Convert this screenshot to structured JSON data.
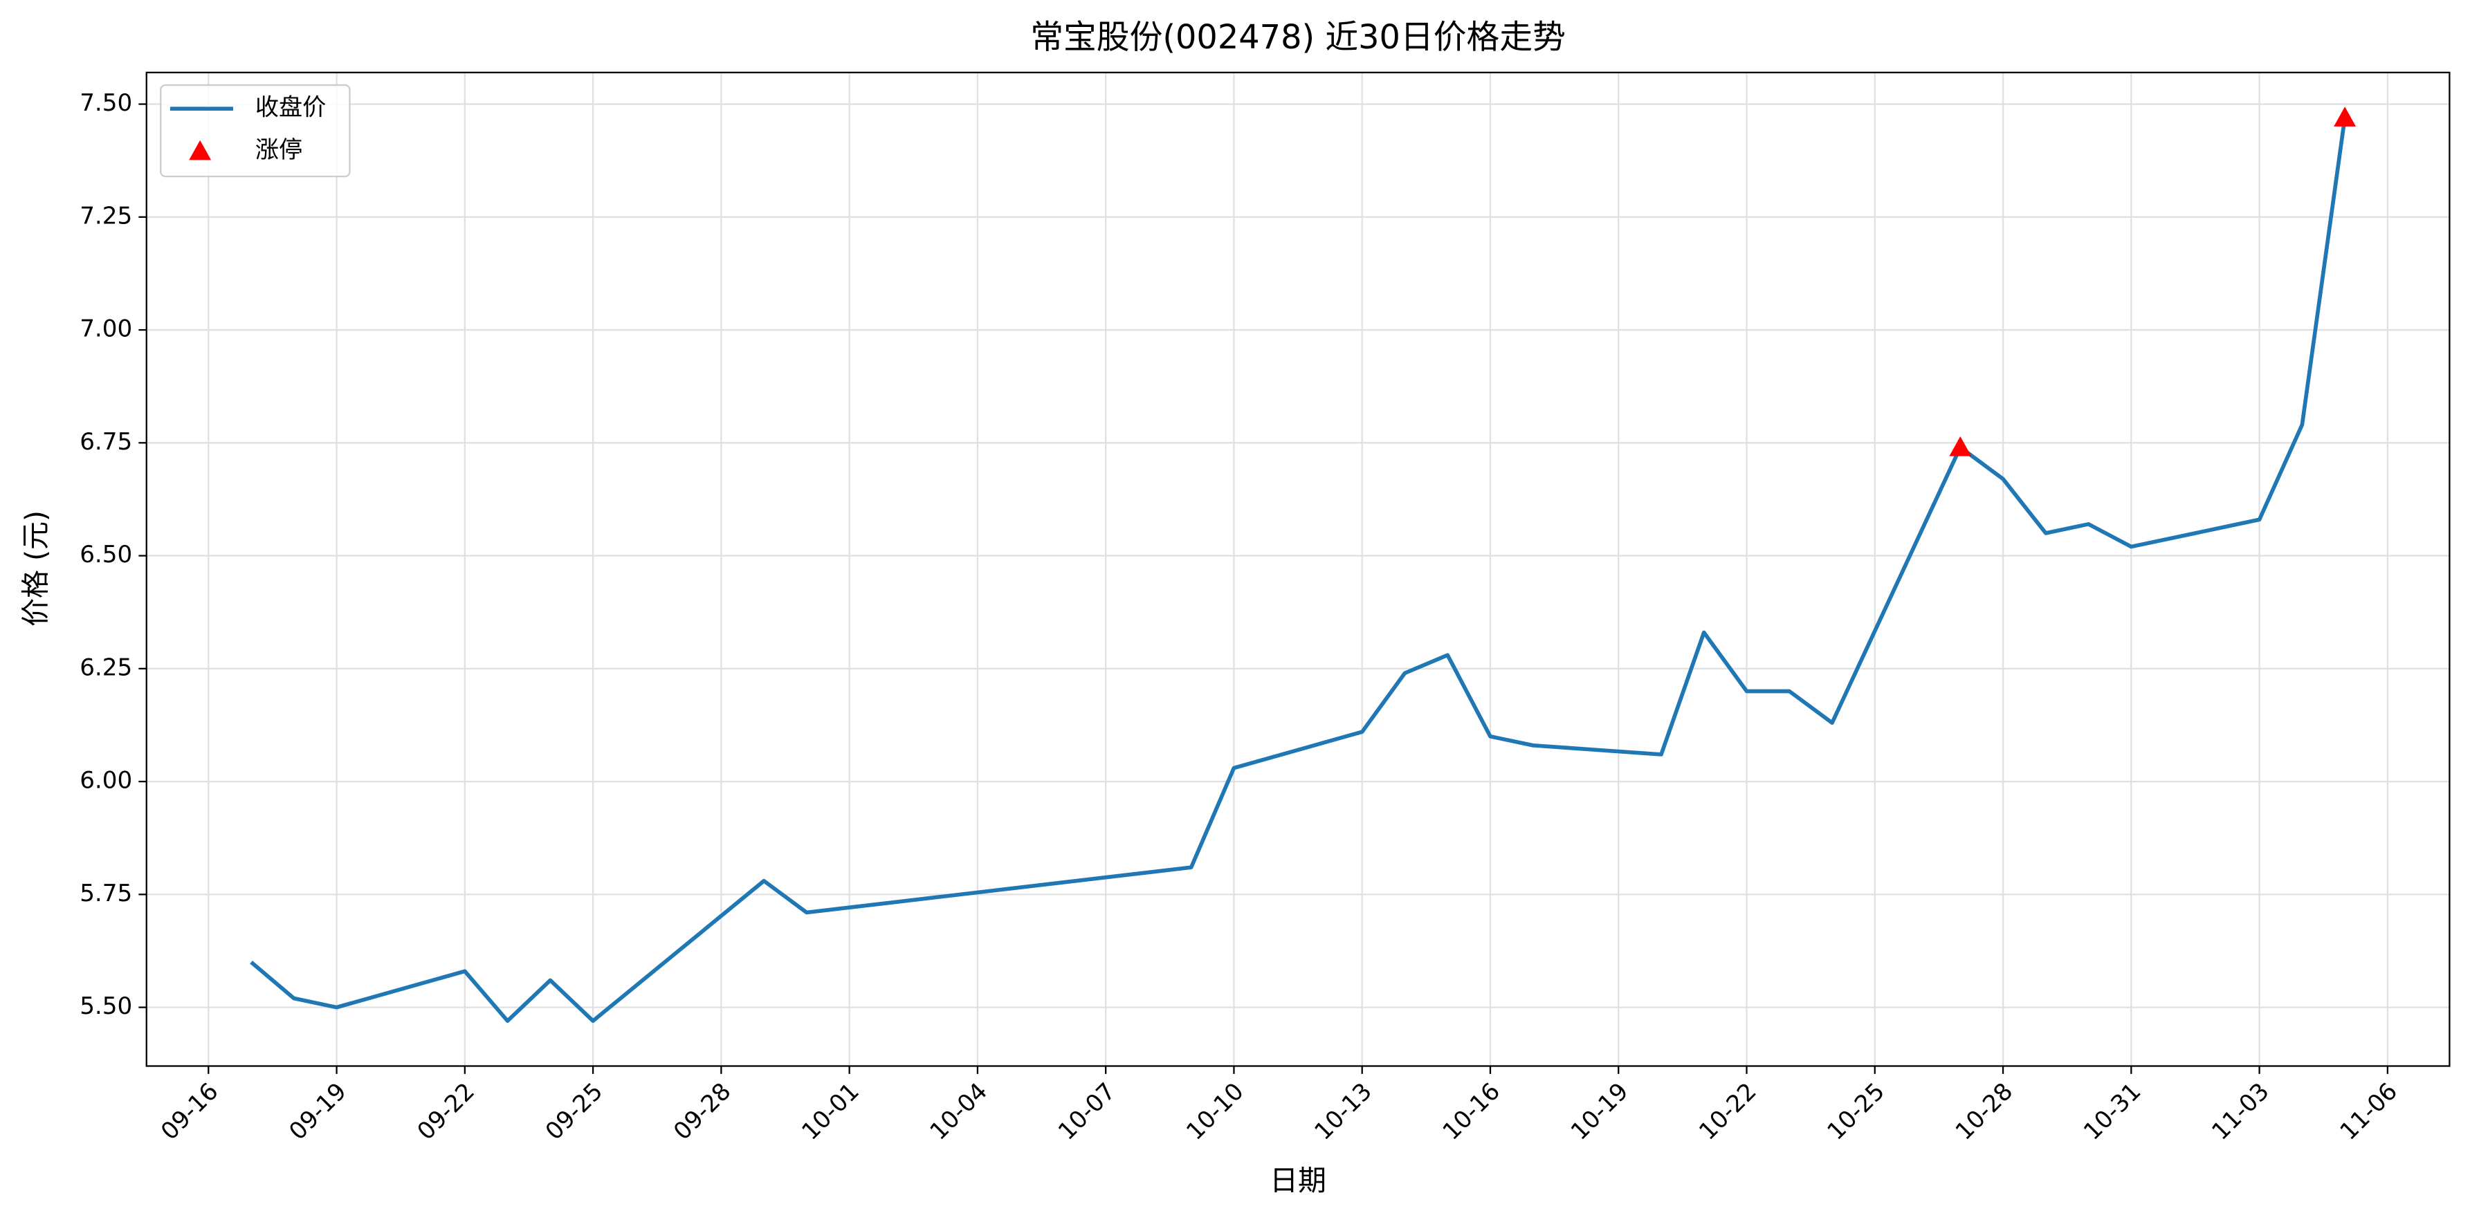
{
  "chart_data": {
    "type": "line",
    "title": "常宝股份(002478) 近30日价格走势",
    "xlabel": "日期",
    "ylabel": "价格 (元)",
    "series": [
      {
        "name": "收盘价",
        "color": "#1f77b4",
        "type": "line",
        "x": [
          "09-17",
          "09-18",
          "09-19",
          "09-22",
          "09-23",
          "09-24",
          "09-25",
          "09-29",
          "09-30",
          "10-09",
          "10-10",
          "10-13",
          "10-14",
          "10-15",
          "10-16",
          "10-17",
          "10-20",
          "10-21",
          "10-22",
          "10-23",
          "10-24",
          "10-27",
          "10-28",
          "10-29",
          "10-30",
          "10-31",
          "11-03",
          "11-04",
          "11-05"
        ],
        "values": [
          5.6,
          5.52,
          5.5,
          5.58,
          5.47,
          5.56,
          5.47,
          5.78,
          5.71,
          5.81,
          6.03,
          6.11,
          6.24,
          6.28,
          6.1,
          6.08,
          6.06,
          6.33,
          6.2,
          6.2,
          6.13,
          6.74,
          6.67,
          6.55,
          6.57,
          6.52,
          6.58,
          6.79,
          7.47
        ]
      },
      {
        "name": "涨停",
        "color": "#ff0000",
        "type": "scatter",
        "marker": "triangle",
        "x": [
          "10-27",
          "11-05"
        ],
        "values": [
          6.74,
          7.47
        ]
      }
    ],
    "xticks": [
      "09-16",
      "09-19",
      "09-22",
      "09-25",
      "09-28",
      "10-01",
      "10-04",
      "10-07",
      "10-10",
      "10-13",
      "10-16",
      "10-19",
      "10-22",
      "10-25",
      "10-28",
      "10-31",
      "11-03",
      "11-06"
    ],
    "ylim": [
      5.37,
      7.57
    ],
    "yticks": [
      {
        "value": 5.5,
        "label": "5.50"
      },
      {
        "value": 5.75,
        "label": "5.75"
      },
      {
        "value": 6.0,
        "label": "6.00"
      },
      {
        "value": 6.25,
        "label": "6.25"
      },
      {
        "value": 6.5,
        "label": "6.50"
      },
      {
        "value": 6.75,
        "label": "6.75"
      },
      {
        "value": 7.0,
        "label": "7.00"
      },
      {
        "value": 7.25,
        "label": "7.25"
      },
      {
        "value": 7.5,
        "label": "7.50"
      }
    ],
    "grid": true,
    "legend": "upper left"
  }
}
